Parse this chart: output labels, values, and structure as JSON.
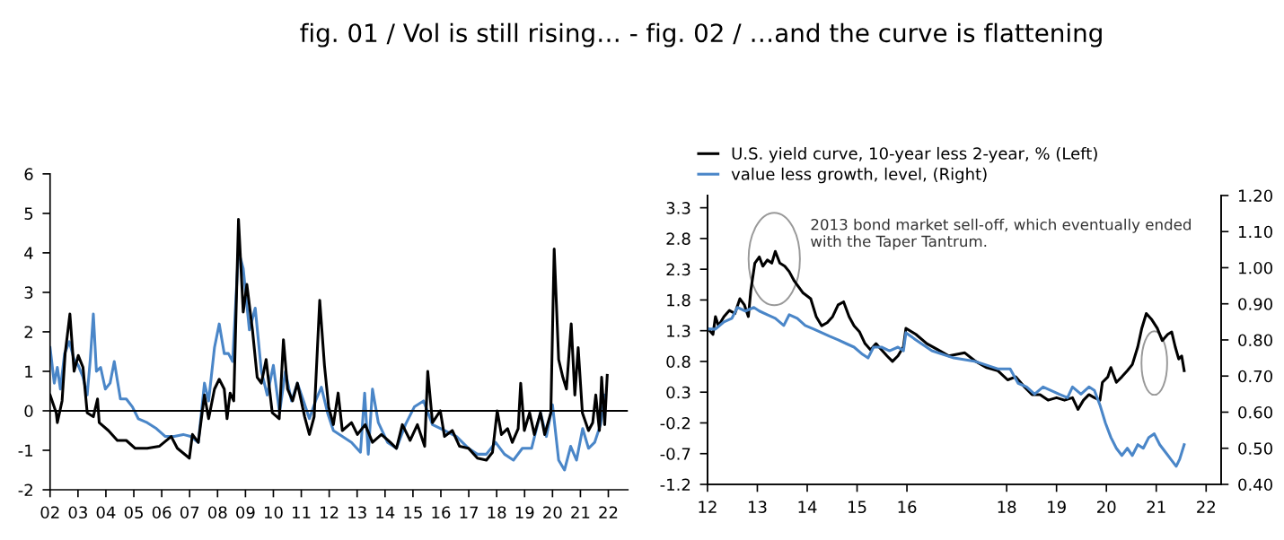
{
  "chart_data": [
    {
      "type": "line",
      "title": "fig. 01 / Vol is still rising… -",
      "xlim": [
        2002,
        2022.7
      ],
      "xticks": [
        {
          "value": 2002,
          "label": "02"
        },
        {
          "value": 2003,
          "label": "03"
        },
        {
          "value": 2004,
          "label": "04"
        },
        {
          "value": 2005,
          "label": "05"
        },
        {
          "value": 2006,
          "label": "06"
        },
        {
          "value": 2007,
          "label": "07"
        },
        {
          "value": 2008,
          "label": "08"
        },
        {
          "value": 2009,
          "label": "09"
        },
        {
          "value": 2010,
          "label": "10"
        },
        {
          "value": 2011,
          "label": "11"
        },
        {
          "value": 2012,
          "label": "12"
        },
        {
          "value": 2013,
          "label": "13"
        },
        {
          "value": 2014,
          "label": "14"
        },
        {
          "value": 2015,
          "label": "15"
        },
        {
          "value": 2016,
          "label": "16"
        },
        {
          "value": 2017,
          "label": "17"
        },
        {
          "value": 2018,
          "label": "18"
        },
        {
          "value": 2019,
          "label": "19"
        },
        {
          "value": 2020,
          "label": "20"
        },
        {
          "value": 2021,
          "label": "21"
        },
        {
          "value": 2022,
          "label": "22"
        }
      ],
      "ylim": [
        -2,
        6
      ],
      "yticks": [
        -2,
        -1,
        0,
        1,
        2,
        3,
        4,
        5,
        6
      ],
      "ref_lines": [
        {
          "axis": "y",
          "value": 0,
          "color": "#000000"
        }
      ],
      "grid": false,
      "legend": false,
      "series": [
        {
          "color": "#4a86c8",
          "x": [
            2002.0,
            2002.15,
            2002.26,
            2002.37,
            2002.52,
            2002.69,
            2002.86,
            2003.01,
            2003.18,
            2003.33,
            2003.44,
            2003.55,
            2003.66,
            2003.81,
            2003.98,
            2004.15,
            2004.3,
            2004.52,
            2004.73,
            2004.95,
            2005.16,
            2005.48,
            2005.81,
            2006.13,
            2006.45,
            2006.77,
            2007.03,
            2007.31,
            2007.53,
            2007.68,
            2007.89,
            2008.06,
            2008.24,
            2008.39,
            2008.54,
            2008.75,
            2008.92,
            2009.14,
            2009.35,
            2009.57,
            2009.78,
            2010.0,
            2010.22,
            2010.43,
            2010.65,
            2010.86,
            2011.08,
            2011.29,
            2011.51,
            2011.72,
            2011.94,
            2012.15,
            2012.47,
            2012.8,
            2013.12,
            2013.27,
            2013.4,
            2013.55,
            2013.76,
            2014.09,
            2014.41,
            2014.73,
            2015.05,
            2015.38,
            2015.7,
            2016.13,
            2016.56,
            2016.99,
            2017.31,
            2017.63,
            2017.96,
            2018.28,
            2018.6,
            2018.92,
            2019.25,
            2019.57,
            2019.78,
            2020.0,
            2020.22,
            2020.43,
            2020.65,
            2020.86,
            2021.08,
            2021.29,
            2021.51,
            2021.72,
            2021.87
          ],
          "values": [
            1.6,
            0.7,
            1.1,
            0.55,
            1.45,
            1.75,
            1.3,
            1.15,
            0.85,
            0.4,
            1.3,
            2.45,
            1.0,
            1.1,
            0.55,
            0.7,
            1.25,
            0.3,
            0.3,
            0.1,
            -0.2,
            -0.3,
            -0.45,
            -0.65,
            -0.65,
            -0.6,
            -0.65,
            -0.8,
            0.7,
            0.25,
            1.6,
            2.2,
            1.45,
            1.45,
            1.25,
            4.05,
            3.6,
            2.05,
            2.6,
            1.0,
            0.4,
            1.15,
            -0.05,
            1.0,
            0.25,
            0.7,
            0.25,
            -0.2,
            0.25,
            0.6,
            -0.05,
            -0.5,
            -0.65,
            -0.8,
            -1.05,
            0.45,
            -1.1,
            0.55,
            -0.3,
            -0.8,
            -0.95,
            -0.35,
            0.1,
            0.25,
            -0.35,
            -0.5,
            -0.65,
            -0.95,
            -1.1,
            -1.1,
            -0.8,
            -1.1,
            -1.25,
            -0.95,
            -0.95,
            -0.05,
            -0.65,
            0.15,
            -1.25,
            -1.5,
            -0.9,
            -1.25,
            -0.45,
            -0.95,
            -0.8,
            -0.35,
            0.4
          ]
        },
        {
          "color": "#000000",
          "x": [
            2002.0,
            2002.22,
            2002.26,
            2002.43,
            2002.54,
            2002.71,
            2002.86,
            2003.01,
            2003.18,
            2003.33,
            2003.55,
            2003.7,
            2003.76,
            2004.09,
            2004.41,
            2004.73,
            2005.05,
            2005.48,
            2005.91,
            2006.34,
            2006.56,
            2006.99,
            2007.1,
            2007.31,
            2007.53,
            2007.68,
            2007.89,
            2008.06,
            2008.24,
            2008.34,
            2008.45,
            2008.58,
            2008.75,
            2008.92,
            2009.05,
            2009.25,
            2009.42,
            2009.57,
            2009.74,
            2009.96,
            2010.21,
            2010.36,
            2010.51,
            2010.69,
            2010.86,
            2011.12,
            2011.29,
            2011.46,
            2011.66,
            2011.83,
            2011.98,
            2012.15,
            2012.32,
            2012.47,
            2012.8,
            2013.01,
            2013.29,
            2013.55,
            2013.87,
            2014.19,
            2014.41,
            2014.62,
            2014.9,
            2015.16,
            2015.42,
            2015.53,
            2015.7,
            2015.98,
            2016.13,
            2016.41,
            2016.67,
            2016.99,
            2017.31,
            2017.63,
            2017.85,
            2018.02,
            2018.17,
            2018.39,
            2018.56,
            2018.77,
            2018.86,
            2018.99,
            2019.18,
            2019.35,
            2019.57,
            2019.72,
            2019.94,
            2020.06,
            2020.22,
            2020.37,
            2020.5,
            2020.67,
            2020.8,
            2020.92,
            2021.07,
            2021.29,
            2021.44,
            2021.55,
            2021.68,
            2021.76,
            2021.87,
            2021.96
          ],
          "values": [
            0.4,
            -0.05,
            -0.3,
            0.25,
            1.45,
            2.45,
            1.0,
            1.4,
            1.1,
            -0.05,
            -0.15,
            0.3,
            -0.3,
            -0.5,
            -0.75,
            -0.75,
            -0.95,
            -0.95,
            -0.9,
            -0.65,
            -0.95,
            -1.2,
            -0.6,
            -0.8,
            0.4,
            -0.2,
            0.55,
            0.8,
            0.55,
            -0.2,
            0.45,
            0.25,
            4.85,
            2.5,
            3.2,
            2.05,
            0.85,
            0.7,
            1.3,
            -0.05,
            -0.2,
            1.8,
            0.55,
            0.25,
            0.7,
            -0.15,
            -0.6,
            -0.15,
            2.8,
            1.15,
            0.1,
            -0.35,
            0.45,
            -0.5,
            -0.3,
            -0.6,
            -0.35,
            -0.8,
            -0.6,
            -0.8,
            -0.95,
            -0.35,
            -0.75,
            -0.35,
            -0.9,
            1.0,
            -0.3,
            0.0,
            -0.65,
            -0.5,
            -0.9,
            -0.95,
            -1.2,
            -1.25,
            -1.05,
            0.0,
            -0.6,
            -0.45,
            -0.8,
            -0.45,
            0.7,
            -0.5,
            -0.05,
            -0.6,
            -0.05,
            -0.6,
            -0.05,
            4.1,
            1.3,
            0.85,
            0.55,
            2.2,
            0.4,
            1.6,
            -0.05,
            -0.5,
            -0.3,
            0.4,
            -0.5,
            0.85,
            -0.35,
            0.9
          ]
        }
      ]
    },
    {
      "type": "line",
      "title": "fig. 02 / …and the curve is flattening",
      "xlim": [
        12,
        22.3
      ],
      "xticks": [
        12,
        13,
        14,
        15,
        16,
        18,
        19,
        20,
        21,
        22
      ],
      "ylim": [
        -1.2,
        3.5
      ],
      "yticks": [
        -1.2,
        -0.7,
        -0.2,
        0.3,
        0.8,
        1.3,
        1.8,
        2.3,
        2.8,
        3.3
      ],
      "y2lim": [
        0.4,
        1.2
      ],
      "y2ticks": [
        {
          "value": 0.4,
          "label": "0.40"
        },
        {
          "value": 0.5,
          "label": "0.50"
        },
        {
          "value": 0.6,
          "label": "0.60"
        },
        {
          "value": 0.7,
          "label": "0.70"
        },
        {
          "value": 0.8,
          "label": "0.80"
        },
        {
          "value": 0.9,
          "label": "0.90"
        },
        {
          "value": 1.0,
          "label": "1.00"
        },
        {
          "value": 1.1,
          "label": "1.10"
        },
        {
          "value": 1.2,
          "label": "1.20"
        }
      ],
      "annotations": [
        "2013 bond market sell-off, which eventually ended\nwith the Taper Tantrum."
      ],
      "grid": false,
      "legend": "top left",
      "series": [
        {
          "name": "U.S. yield curve, 10-year less 2-year, % (Left)",
          "color": "#000000",
          "x": [
            12.0,
            12.11,
            12.16,
            12.22,
            12.33,
            12.44,
            12.55,
            12.65,
            12.74,
            12.82,
            12.87,
            12.95,
            13.04,
            13.11,
            13.2,
            13.29,
            13.36,
            13.45,
            13.55,
            13.64,
            13.74,
            13.91,
            14.07,
            14.18,
            14.29,
            14.4,
            14.51,
            14.62,
            14.73,
            14.84,
            14.94,
            15.05,
            15.16,
            15.27,
            15.38,
            15.49,
            15.6,
            15.71,
            15.82,
            15.93,
            15.98,
            16.18,
            16.4,
            16.62,
            16.84,
            17.16,
            17.38,
            17.6,
            17.82,
            18.02,
            18.18,
            18.34,
            18.51,
            18.67,
            18.83,
            19.0,
            19.16,
            19.32,
            19.43,
            19.54,
            19.65,
            19.76,
            19.87,
            19.92,
            20.03,
            20.09,
            20.2,
            20.31,
            20.42,
            20.52,
            20.63,
            20.71,
            20.8,
            20.91,
            21.02,
            21.12,
            21.23,
            21.31,
            21.38,
            21.45,
            21.51,
            21.56
          ],
          "values": [
            1.34,
            1.24,
            1.53,
            1.38,
            1.53,
            1.63,
            1.58,
            1.82,
            1.72,
            1.53,
            1.96,
            2.4,
            2.5,
            2.35,
            2.45,
            2.4,
            2.59,
            2.4,
            2.35,
            2.26,
            2.11,
            1.92,
            1.82,
            1.53,
            1.38,
            1.43,
            1.53,
            1.72,
            1.77,
            1.53,
            1.38,
            1.28,
            1.09,
            0.99,
            1.09,
            0.99,
            0.89,
            0.8,
            0.89,
            1.04,
            1.34,
            1.24,
            1.09,
            0.99,
            0.89,
            0.94,
            0.8,
            0.7,
            0.65,
            0.5,
            0.55,
            0.4,
            0.26,
            0.26,
            0.17,
            0.21,
            0.17,
            0.21,
            0.02,
            0.17,
            0.26,
            0.21,
            0.17,
            0.46,
            0.55,
            0.7,
            0.46,
            0.55,
            0.65,
            0.75,
            1.04,
            1.34,
            1.58,
            1.48,
            1.34,
            1.14,
            1.24,
            1.28,
            1.04,
            0.84,
            0.89,
            0.65
          ]
        },
        {
          "name": "value less growth, level, (Right)",
          "axis": "y2",
          "color": "#4a86c8",
          "x": [
            12.0,
            12.16,
            12.33,
            12.49,
            12.6,
            12.76,
            12.93,
            13.04,
            13.2,
            13.36,
            13.53,
            13.64,
            13.8,
            13.96,
            14.13,
            14.29,
            14.45,
            14.62,
            14.78,
            14.94,
            15.11,
            15.22,
            15.33,
            15.49,
            15.65,
            15.82,
            15.93,
            15.98,
            16.18,
            16.5,
            16.94,
            17.38,
            17.82,
            18.07,
            18.23,
            18.4,
            18.56,
            18.73,
            18.89,
            19.05,
            19.22,
            19.32,
            19.49,
            19.65,
            19.76,
            19.87,
            19.98,
            20.09,
            20.2,
            20.31,
            20.42,
            20.52,
            20.63,
            20.74,
            20.85,
            20.96,
            21.07,
            21.18,
            21.29,
            21.4,
            21.47,
            21.56
          ],
          "values": [
            0.83,
            0.83,
            0.85,
            0.86,
            0.89,
            0.88,
            0.89,
            0.88,
            0.87,
            0.86,
            0.84,
            0.87,
            0.86,
            0.84,
            0.83,
            0.82,
            0.81,
            0.8,
            0.79,
            0.78,
            0.76,
            0.75,
            0.78,
            0.78,
            0.77,
            0.78,
            0.77,
            0.82,
            0.8,
            0.77,
            0.75,
            0.74,
            0.72,
            0.72,
            0.68,
            0.67,
            0.65,
            0.67,
            0.66,
            0.65,
            0.64,
            0.67,
            0.65,
            0.67,
            0.66,
            0.62,
            0.57,
            0.53,
            0.5,
            0.48,
            0.5,
            0.48,
            0.51,
            0.5,
            0.53,
            0.54,
            0.51,
            0.49,
            0.47,
            0.45,
            0.47,
            0.51
          ]
        }
      ]
    }
  ]
}
